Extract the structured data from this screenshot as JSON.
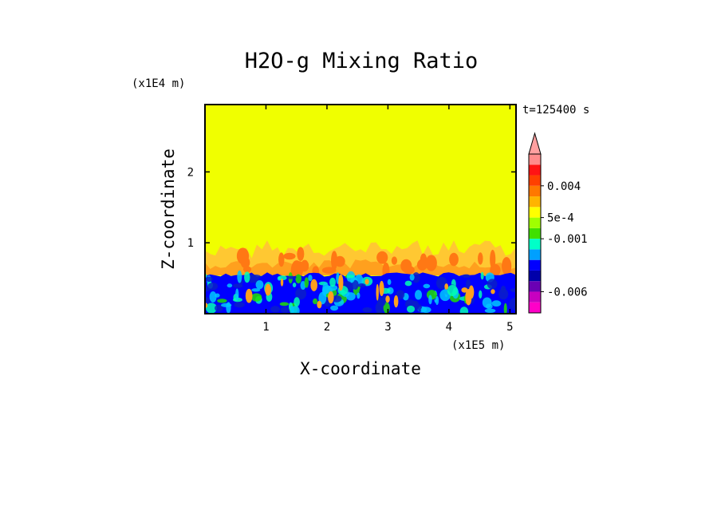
{
  "chart_data": {
    "type": "heatmap",
    "title": "H2O-g Mixing Ratio",
    "xlabel": "X-coordinate",
    "ylabel": "Z-coordinate",
    "x_multiplier": "(x1E5 m)",
    "y_multiplier": "(x1E4 m)",
    "time_label": "t=125400 s",
    "xlim": [
      0,
      5.1
    ],
    "ylim": [
      0,
      2.95
    ],
    "x_ticks": [
      1,
      2,
      3,
      4,
      5
    ],
    "y_ticks": [
      1,
      2
    ],
    "colorbar": {
      "colors": [
        "#ff00c8",
        "#c800c0",
        "#6a00b4",
        "#0000aa",
        "#0000ff",
        "#00a0ff",
        "#00ffc8",
        "#40e000",
        "#a0ff00",
        "#ffff00",
        "#ffb400",
        "#ff7800",
        "#ff4000",
        "#ff1414",
        "#ff8c8c"
      ],
      "over_color": "#ffa0a0",
      "tick_labels": [
        "0.004",
        "5e-4",
        "-0.001",
        "-0.006"
      ],
      "tick_bands": [
        12,
        9,
        7,
        2
      ]
    },
    "field_description_colors": {
      "upper_background": "#f0ff00",
      "mixing_layer": [
        "#ffc832",
        "#ffa01e",
        "#ff7814"
      ],
      "surface_layer": [
        "#0000ff",
        "#0a1ec8",
        "#00c8ff",
        "#00ffb4",
        "#20e000",
        "#7800c0"
      ]
    }
  }
}
